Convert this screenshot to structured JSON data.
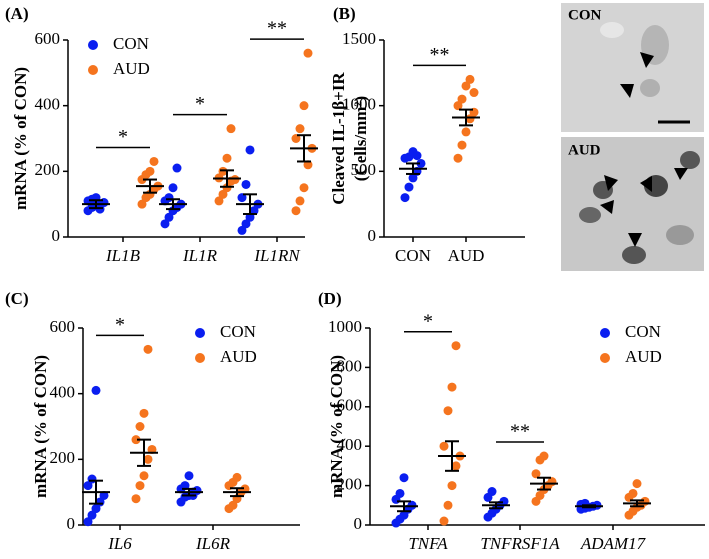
{
  "chart_data": [
    {
      "type": "dot",
      "title": "(A)",
      "ylabel": [
        "mRNA (% of CON)"
      ],
      "ylim": [
        0,
        600
      ],
      "yticks": [
        0,
        200,
        400,
        600
      ],
      "categories": [
        "IL1B",
        "IL1R",
        "IL1RN"
      ],
      "legend": "upper left",
      "significance": [
        "*",
        "*",
        "**"
      ],
      "series": [
        {
          "name": "CON",
          "color": "#0a1ef0",
          "values": [
            [
              80,
              90,
              95,
              100,
              105,
              110,
              115,
              120,
              85
            ],
            [
              40,
              60,
              80,
              90,
              100,
              110,
              120,
              150,
              210
            ],
            [
              20,
              40,
              60,
              80,
              100,
              120,
              160,
              265
            ]
          ],
          "mean": [
            100,
            100,
            100
          ],
          "sem": [
            12,
            15,
            30
          ]
        },
        {
          "name": "AUD",
          "color": "#f5741e",
          "values": [
            [
              100,
              120,
              130,
              145,
              155,
              175,
              190,
              200,
              230
            ],
            [
              110,
              130,
              150,
              170,
              175,
              180,
              200,
              240,
              330
            ],
            [
              80,
              110,
              150,
              220,
              270,
              300,
              330,
              400,
              560
            ]
          ],
          "mean": [
            155,
            178,
            270
          ],
          "sem": [
            20,
            25,
            40
          ]
        }
      ]
    },
    {
      "type": "dot",
      "title": "(B)",
      "ylabel": [
        "Cleaved IL-1β+IR",
        "(Cells/mm²)"
      ],
      "ylim": [
        0,
        1500
      ],
      "yticks": [
        0,
        500,
        1000,
        1500
      ],
      "categories": [
        "CON",
        "AUD"
      ],
      "colors": [
        "#0a1ef0",
        "#f5741e"
      ],
      "significance": "**",
      "values": [
        [
          300,
          380,
          450,
          500,
          560,
          600,
          610,
          650,
          620
        ],
        [
          600,
          700,
          800,
          900,
          950,
          1000,
          1050,
          1150,
          1200,
          1100
        ]
      ],
      "mean": [
        520,
        910
      ],
      "sem": [
        40,
        60
      ]
    },
    {
      "type": "dot",
      "title": "(C)",
      "ylabel": [
        "mRNA (% of CON)"
      ],
      "ylim": [
        0,
        600
      ],
      "yticks": [
        0,
        200,
        400,
        600
      ],
      "categories": [
        "IL6",
        "IL6R"
      ],
      "legend": "upper right",
      "significance": [
        "*",
        null
      ],
      "series": [
        {
          "name": "CON",
          "color": "#0a1ef0",
          "values": [
            [
              10,
              30,
              50,
              70,
              90,
              120,
              140,
              410
            ],
            [
              70,
              85,
              90,
              100,
              105,
              110,
              120,
              150,
              90
            ]
          ],
          "mean": [
            100,
            100
          ],
          "sem": [
            35,
            10
          ]
        },
        {
          "name": "AUD",
          "color": "#f5741e",
          "values": [
            [
              80,
              120,
              150,
              200,
              230,
              260,
              300,
              340,
              535
            ],
            [
              50,
              60,
              80,
              100,
              110,
              120,
              130,
              145
            ]
          ],
          "mean": [
            220,
            100
          ],
          "sem": [
            40,
            12
          ]
        }
      ]
    },
    {
      "type": "dot",
      "title": "(D)",
      "ylabel": [
        "mRNA (% of CON)"
      ],
      "ylim": [
        0,
        1000
      ],
      "yticks": [
        0,
        200,
        400,
        600,
        800,
        1000
      ],
      "categories": [
        "TNFA",
        "TNFRSF1A",
        "ADAM17"
      ],
      "legend": "upper right",
      "significance": [
        "*",
        "**",
        null
      ],
      "series": [
        {
          "name": "CON",
          "color": "#0a1ef0",
          "values": [
            [
              10,
              30,
              50,
              80,
              100,
              130,
              160,
              240
            ],
            [
              40,
              60,
              80,
              100,
              120,
              140,
              170
            ],
            [
              80,
              85,
              90,
              95,
              100,
              105,
              110
            ]
          ],
          "mean": [
            95,
            100,
            95
          ],
          "sem": [
            25,
            15,
            5
          ]
        },
        {
          "name": "AUD",
          "color": "#f5741e",
          "values": [
            [
              20,
              100,
              200,
              300,
              350,
              400,
              580,
              700,
              910
            ],
            [
              120,
              150,
              180,
              200,
              220,
              260,
              330,
              350
            ],
            [
              50,
              70,
              90,
              100,
              120,
              140,
              160,
              210
            ]
          ],
          "mean": [
            350,
            210,
            110
          ],
          "sem": [
            75,
            30,
            15
          ]
        }
      ]
    }
  ],
  "micrographs": [
    "CON",
    "AUD"
  ]
}
